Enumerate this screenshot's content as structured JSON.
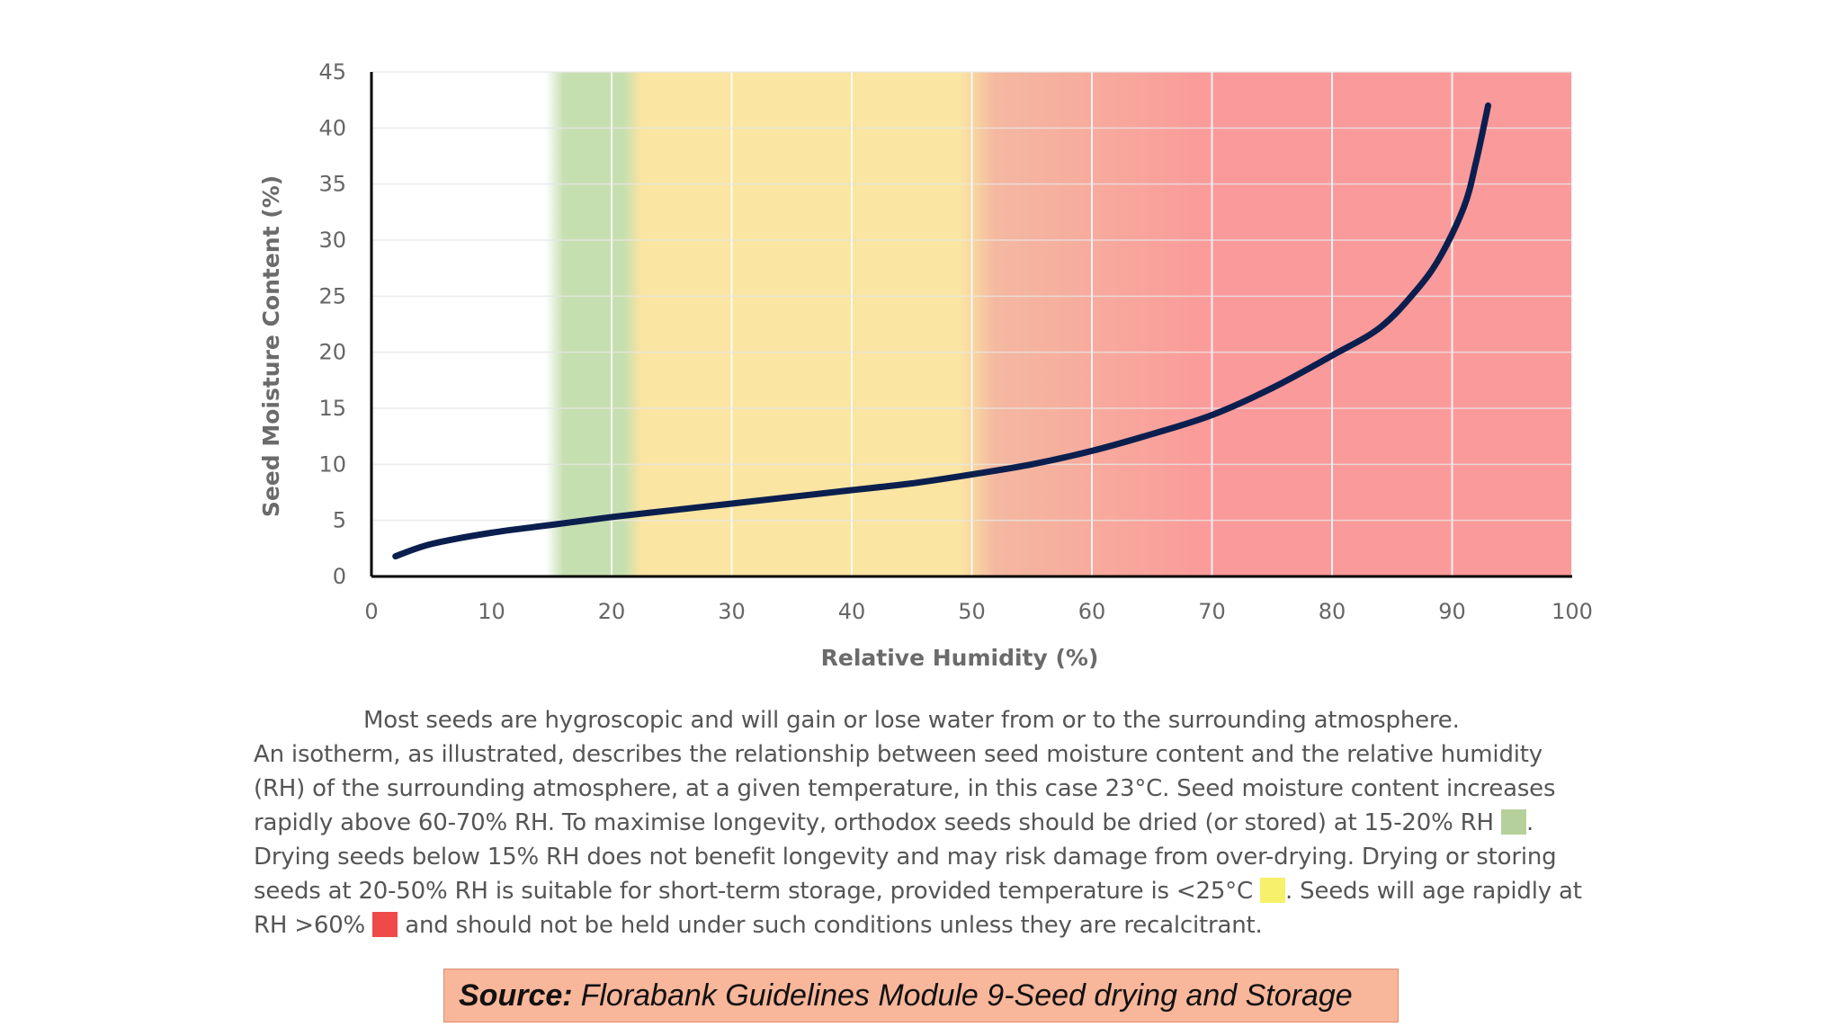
{
  "chart_data": {
    "type": "line",
    "xlabel": "Relative Humidity (%)",
    "ylabel": "Seed Moisture Content (%)",
    "xlim": [
      0,
      100
    ],
    "ylim": [
      0,
      45
    ],
    "xticks": [
      "0",
      "10",
      "20",
      "30",
      "40",
      "50",
      "60",
      "70",
      "80",
      "90",
      "100"
    ],
    "yticks": [
      "0",
      "5",
      "10",
      "15",
      "20",
      "25",
      "30",
      "35",
      "40",
      "45"
    ],
    "grid": true,
    "series": [
      {
        "color": "#0b1f4f",
        "x": [
          2,
          5,
          10,
          15,
          20,
          25,
          30,
          35,
          40,
          45,
          50,
          55,
          60,
          65,
          70,
          75,
          80,
          84,
          87,
          89,
          91,
          92,
          93
        ],
        "y": [
          1.8,
          2.9,
          3.9,
          4.6,
          5.3,
          5.9,
          6.5,
          7.1,
          7.7,
          8.3,
          9.1,
          10.0,
          11.2,
          12.7,
          14.4,
          16.8,
          19.7,
          22.2,
          25.5,
          28.5,
          33.0,
          37.0,
          42.0
        ]
      }
    ],
    "bands": [
      {
        "from": 15,
        "to": 22,
        "color": "#c6dfb0",
        "meaning": "optimal drying 15-20% RH"
      },
      {
        "from": 22,
        "to": 50,
        "color": "#fbe5a2",
        "meaning": "short-term storage 20-50% RH"
      },
      {
        "from": 50,
        "to": 70,
        "color": "#f4b8a0",
        "meaning": "transition to rapid ageing"
      },
      {
        "from": 70,
        "to": 100,
        "color": "#fb9a9a",
        "meaning": "rapid ageing RH >60%"
      }
    ]
  },
  "caption": {
    "line1": "Most seeds are hygroscopic and will gain or lose water from or to the surrounding atmosphere.",
    "part1": "An isotherm, as illustrated, describes the relationship between seed moisture content and the relative humidity (RH) of the surrounding atmosphere, at a given temperature, in this case 23°C. Seed moisture content increases rapidly above 60-70% RH. To maximise longevity, orthodox seeds should be dried (or stored) at 15-20% RH",
    "part2": ". Drying seeds below 15% RH does not benefit longevity and may risk damage from over-drying. Drying or storing seeds at 20-50% RH is suitable for short-term storage, provided temperature is <25°C",
    "part3": ". Seeds will age rapidly at RH >60%",
    "part4": " and should not be held under such conditions unless they are recalcitrant.",
    "swatch_green": "#b5d09a",
    "swatch_yellow": "#f7f06a",
    "swatch_red": "#ee4a4a"
  },
  "source": {
    "label": "Source:",
    "text": "Florabank Guidelines Module 9-Seed drying and Storage"
  }
}
